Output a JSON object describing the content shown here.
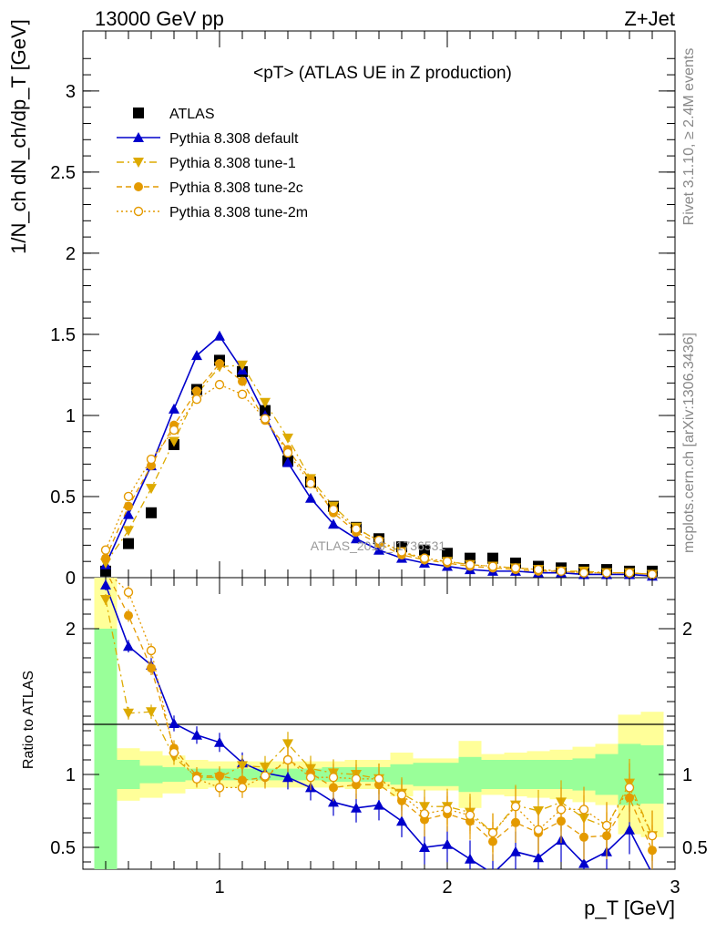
{
  "header": {
    "energy": "13000 GeV pp",
    "process": "Z+Jet"
  },
  "chart_data": [
    {
      "type": "line",
      "title": "<pT> (ATLAS UE in Z production)",
      "ylabel": "1/N_ch dN_ch/dp_T [GeV]",
      "xlabel": "p_T [GeV]",
      "xlim": [
        0.4,
        3.0
      ],
      "ylim": [
        0,
        3.37
      ],
      "yticks": [
        "0",
        "0.5",
        "1",
        "1.5",
        "2",
        "2.5",
        "3"
      ],
      "watermark": "ATLAS_2019_I1736531",
      "x": [
        0.5,
        0.6,
        0.7,
        0.8,
        0.9,
        1.0,
        1.1,
        1.2,
        1.3,
        1.4,
        1.5,
        1.6,
        1.7,
        1.8,
        1.9,
        2.0,
        2.1,
        2.2,
        2.3,
        2.4,
        2.5,
        2.6,
        2.7,
        2.8,
        2.9
      ],
      "series": [
        {
          "name": "ATLAS",
          "color": "#000000",
          "marker": "square",
          "values": [
            0.04,
            0.21,
            0.4,
            0.82,
            1.16,
            1.34,
            1.27,
            1.03,
            0.72,
            0.59,
            0.44,
            0.31,
            0.24,
            0.19,
            0.17,
            0.15,
            0.12,
            0.12,
            0.09,
            0.07,
            0.06,
            0.05,
            0.05,
            0.04,
            0.04
          ]
        },
        {
          "name": "Pythia 8.308 default",
          "color": "#0000cc",
          "marker": "triangle-up",
          "dash": "",
          "values": [
            0.08,
            0.39,
            0.69,
            1.04,
            1.37,
            1.49,
            1.28,
            1.0,
            0.71,
            0.49,
            0.33,
            0.24,
            0.17,
            0.12,
            0.09,
            0.07,
            0.05,
            0.04,
            0.04,
            0.03,
            0.03,
            0.02,
            0.02,
            0.02,
            0.01
          ]
        },
        {
          "name": "Pythia 8.308 tune-1",
          "color": "#ddaa00",
          "marker": "triangle-down",
          "dash": "8,4,2,4",
          "values": [
            0.09,
            0.29,
            0.55,
            0.84,
            1.13,
            1.3,
            1.31,
            1.08,
            0.86,
            0.61,
            0.44,
            0.31,
            0.22,
            0.16,
            0.11,
            0.1,
            0.08,
            0.07,
            0.06,
            0.05,
            0.04,
            0.04,
            0.03,
            0.03,
            0.02
          ]
        },
        {
          "name": "Pythia 8.308 tune-2c",
          "color": "#e49a00",
          "marker": "circle",
          "dash": "6,4",
          "values": [
            0.12,
            0.44,
            0.69,
            0.94,
            1.15,
            1.32,
            1.21,
            0.97,
            0.79,
            0.6,
            0.4,
            0.28,
            0.21,
            0.14,
            0.11,
            0.09,
            0.07,
            0.06,
            0.05,
            0.04,
            0.04,
            0.03,
            0.03,
            0.03,
            0.02
          ]
        },
        {
          "name": "Pythia 8.308 tune-2m",
          "color": "#e49a00",
          "marker": "open-circle",
          "dash": "2,3",
          "values": [
            0.17,
            0.5,
            0.73,
            0.91,
            1.1,
            1.19,
            1.13,
            0.98,
            0.77,
            0.58,
            0.42,
            0.3,
            0.23,
            0.16,
            0.12,
            0.1,
            0.08,
            0.07,
            0.06,
            0.05,
            0.04,
            0.03,
            0.03,
            0.03,
            0.02
          ]
        }
      ]
    },
    {
      "type": "line",
      "ylabel": "Ratio to ATLAS",
      "xlabel": "p_T [GeV]",
      "xlim": [
        0.4,
        3.0
      ],
      "ylim": [
        0.35,
        2.35
      ],
      "yticks": [
        "0.5",
        "1",
        "2"
      ],
      "xticks": [
        "1",
        "2",
        "3"
      ],
      "x": [
        0.5,
        0.6,
        0.7,
        0.8,
        0.9,
        1.0,
        1.1,
        1.2,
        1.3,
        1.4,
        1.5,
        1.6,
        1.7,
        1.8,
        1.9,
        2.0,
        2.1,
        2.2,
        2.3,
        2.4,
        2.5,
        2.6,
        2.7,
        2.8,
        2.9
      ],
      "bands": {
        "stat_color": "#99ff99",
        "total_color": "#ffff99",
        "green_half": [
          1.0,
          0.1,
          0.06,
          0.05,
          0.04,
          0.04,
          0.04,
          0.04,
          0.04,
          0.04,
          0.05,
          0.05,
          0.05,
          0.07,
          0.08,
          0.08,
          0.12,
          0.1,
          0.1,
          0.1,
          0.1,
          0.11,
          0.14,
          0.21,
          0.2
        ],
        "yellow_half": [
          1.35,
          0.18,
          0.16,
          0.13,
          0.1,
          0.09,
          0.09,
          0.09,
          0.09,
          0.09,
          0.09,
          0.1,
          0.1,
          0.15,
          0.11,
          0.11,
          0.23,
          0.14,
          0.15,
          0.16,
          0.17,
          0.19,
          0.21,
          0.41,
          0.43
        ]
      },
      "series": [
        {
          "name": "Pythia 8.308 default",
          "values": [
            2.3,
            1.88,
            1.75,
            1.35,
            1.27,
            1.22,
            1.08,
            1.01,
            0.98,
            0.91,
            0.81,
            0.77,
            0.79,
            0.68,
            0.5,
            0.52,
            0.42,
            0.32,
            0.47,
            0.43,
            0.55,
            0.39,
            0.47,
            0.62,
            0.32
          ]
        },
        {
          "name": "Pythia 8.308 tune-1",
          "values": [
            2.2,
            1.42,
            1.43,
            1.12,
            0.98,
            0.98,
            1.06,
            1.05,
            1.21,
            1.04,
            1.01,
            1.0,
            0.97,
            0.87,
            0.78,
            0.78,
            0.74,
            0.6,
            0.79,
            0.75,
            0.81,
            0.7,
            0.64,
            0.94,
            0.58
          ]
        },
        {
          "name": "Pythia 8.308 tune-2c",
          "values": [
            2.4,
            2.09,
            1.73,
            1.18,
            0.99,
            0.99,
            0.96,
            0.98,
            1.1,
            1.01,
            0.91,
            0.93,
            0.93,
            0.82,
            0.69,
            0.73,
            0.68,
            0.54,
            0.67,
            0.6,
            0.68,
            0.57,
            0.58,
            0.84,
            0.48
          ]
        },
        {
          "name": "Pythia 8.308 tune-2m",
          "values": [
            2.4,
            2.25,
            1.85,
            1.15,
            0.97,
            0.91,
            0.91,
            0.99,
            1.1,
            0.98,
            0.98,
            0.97,
            0.97,
            0.86,
            0.73,
            0.76,
            0.72,
            0.6,
            0.78,
            0.62,
            0.76,
            0.76,
            0.65,
            0.91,
            0.58
          ]
        }
      ]
    }
  ],
  "side_labels": {
    "rivet": "Rivet 3.1.10, ≥ 2.4M events",
    "mcplots": "mcplots.cern.ch [arXiv:1306.3436]"
  }
}
